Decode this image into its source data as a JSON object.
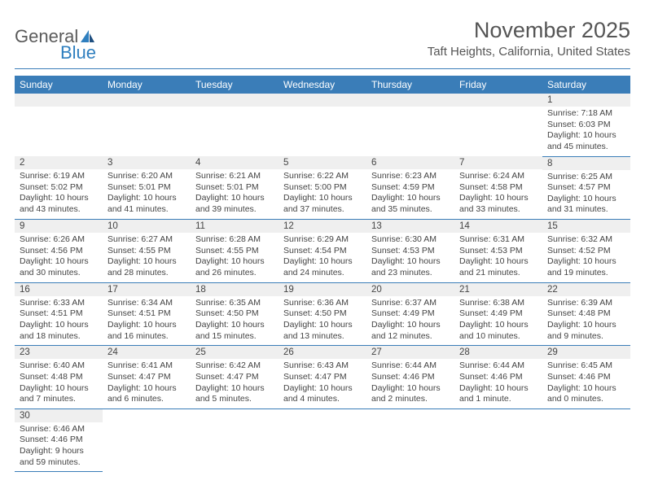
{
  "logo": {
    "word1": "General",
    "word2": "Blue"
  },
  "title": "November 2025",
  "location": "Taft Heights, California, United States",
  "colors": {
    "header_bg": "#3a7db8",
    "header_text": "#ffffff",
    "rule": "#3a7db8",
    "daynum_bg": "#efefef",
    "text": "#444444",
    "logo_gray": "#5b5b5b",
    "logo_blue": "#2f7fbf",
    "page_bg": "#ffffff"
  },
  "typography": {
    "title_fontsize": 27,
    "location_fontsize": 15,
    "weekday_fontsize": 12,
    "daynum_fontsize": 11.5,
    "detail_fontsize": 10.5,
    "font_family": "Arial"
  },
  "weekdays": [
    "Sunday",
    "Monday",
    "Tuesday",
    "Wednesday",
    "Thursday",
    "Friday",
    "Saturday"
  ],
  "weeks": [
    [
      null,
      null,
      null,
      null,
      null,
      null,
      {
        "n": "1",
        "sr": "Sunrise: 7:18 AM",
        "ss": "Sunset: 6:03 PM",
        "d1": "Daylight: 10 hours",
        "d2": "and 45 minutes."
      }
    ],
    [
      {
        "n": "2",
        "sr": "Sunrise: 6:19 AM",
        "ss": "Sunset: 5:02 PM",
        "d1": "Daylight: 10 hours",
        "d2": "and 43 minutes."
      },
      {
        "n": "3",
        "sr": "Sunrise: 6:20 AM",
        "ss": "Sunset: 5:01 PM",
        "d1": "Daylight: 10 hours",
        "d2": "and 41 minutes."
      },
      {
        "n": "4",
        "sr": "Sunrise: 6:21 AM",
        "ss": "Sunset: 5:01 PM",
        "d1": "Daylight: 10 hours",
        "d2": "and 39 minutes."
      },
      {
        "n": "5",
        "sr": "Sunrise: 6:22 AM",
        "ss": "Sunset: 5:00 PM",
        "d1": "Daylight: 10 hours",
        "d2": "and 37 minutes."
      },
      {
        "n": "6",
        "sr": "Sunrise: 6:23 AM",
        "ss": "Sunset: 4:59 PM",
        "d1": "Daylight: 10 hours",
        "d2": "and 35 minutes."
      },
      {
        "n": "7",
        "sr": "Sunrise: 6:24 AM",
        "ss": "Sunset: 4:58 PM",
        "d1": "Daylight: 10 hours",
        "d2": "and 33 minutes."
      },
      {
        "n": "8",
        "sr": "Sunrise: 6:25 AM",
        "ss": "Sunset: 4:57 PM",
        "d1": "Daylight: 10 hours",
        "d2": "and 31 minutes."
      }
    ],
    [
      {
        "n": "9",
        "sr": "Sunrise: 6:26 AM",
        "ss": "Sunset: 4:56 PM",
        "d1": "Daylight: 10 hours",
        "d2": "and 30 minutes."
      },
      {
        "n": "10",
        "sr": "Sunrise: 6:27 AM",
        "ss": "Sunset: 4:55 PM",
        "d1": "Daylight: 10 hours",
        "d2": "and 28 minutes."
      },
      {
        "n": "11",
        "sr": "Sunrise: 6:28 AM",
        "ss": "Sunset: 4:55 PM",
        "d1": "Daylight: 10 hours",
        "d2": "and 26 minutes."
      },
      {
        "n": "12",
        "sr": "Sunrise: 6:29 AM",
        "ss": "Sunset: 4:54 PM",
        "d1": "Daylight: 10 hours",
        "d2": "and 24 minutes."
      },
      {
        "n": "13",
        "sr": "Sunrise: 6:30 AM",
        "ss": "Sunset: 4:53 PM",
        "d1": "Daylight: 10 hours",
        "d2": "and 23 minutes."
      },
      {
        "n": "14",
        "sr": "Sunrise: 6:31 AM",
        "ss": "Sunset: 4:53 PM",
        "d1": "Daylight: 10 hours",
        "d2": "and 21 minutes."
      },
      {
        "n": "15",
        "sr": "Sunrise: 6:32 AM",
        "ss": "Sunset: 4:52 PM",
        "d1": "Daylight: 10 hours",
        "d2": "and 19 minutes."
      }
    ],
    [
      {
        "n": "16",
        "sr": "Sunrise: 6:33 AM",
        "ss": "Sunset: 4:51 PM",
        "d1": "Daylight: 10 hours",
        "d2": "and 18 minutes."
      },
      {
        "n": "17",
        "sr": "Sunrise: 6:34 AM",
        "ss": "Sunset: 4:51 PM",
        "d1": "Daylight: 10 hours",
        "d2": "and 16 minutes."
      },
      {
        "n": "18",
        "sr": "Sunrise: 6:35 AM",
        "ss": "Sunset: 4:50 PM",
        "d1": "Daylight: 10 hours",
        "d2": "and 15 minutes."
      },
      {
        "n": "19",
        "sr": "Sunrise: 6:36 AM",
        "ss": "Sunset: 4:50 PM",
        "d1": "Daylight: 10 hours",
        "d2": "and 13 minutes."
      },
      {
        "n": "20",
        "sr": "Sunrise: 6:37 AM",
        "ss": "Sunset: 4:49 PM",
        "d1": "Daylight: 10 hours",
        "d2": "and 12 minutes."
      },
      {
        "n": "21",
        "sr": "Sunrise: 6:38 AM",
        "ss": "Sunset: 4:49 PM",
        "d1": "Daylight: 10 hours",
        "d2": "and 10 minutes."
      },
      {
        "n": "22",
        "sr": "Sunrise: 6:39 AM",
        "ss": "Sunset: 4:48 PM",
        "d1": "Daylight: 10 hours",
        "d2": "and 9 minutes."
      }
    ],
    [
      {
        "n": "23",
        "sr": "Sunrise: 6:40 AM",
        "ss": "Sunset: 4:48 PM",
        "d1": "Daylight: 10 hours",
        "d2": "and 7 minutes."
      },
      {
        "n": "24",
        "sr": "Sunrise: 6:41 AM",
        "ss": "Sunset: 4:47 PM",
        "d1": "Daylight: 10 hours",
        "d2": "and 6 minutes."
      },
      {
        "n": "25",
        "sr": "Sunrise: 6:42 AM",
        "ss": "Sunset: 4:47 PM",
        "d1": "Daylight: 10 hours",
        "d2": "and 5 minutes."
      },
      {
        "n": "26",
        "sr": "Sunrise: 6:43 AM",
        "ss": "Sunset: 4:47 PM",
        "d1": "Daylight: 10 hours",
        "d2": "and 4 minutes."
      },
      {
        "n": "27",
        "sr": "Sunrise: 6:44 AM",
        "ss": "Sunset: 4:46 PM",
        "d1": "Daylight: 10 hours",
        "d2": "and 2 minutes."
      },
      {
        "n": "28",
        "sr": "Sunrise: 6:44 AM",
        "ss": "Sunset: 4:46 PM",
        "d1": "Daylight: 10 hours",
        "d2": "and 1 minute."
      },
      {
        "n": "29",
        "sr": "Sunrise: 6:45 AM",
        "ss": "Sunset: 4:46 PM",
        "d1": "Daylight: 10 hours",
        "d2": "and 0 minutes."
      }
    ],
    [
      {
        "n": "30",
        "sr": "Sunrise: 6:46 AM",
        "ss": "Sunset: 4:46 PM",
        "d1": "Daylight: 9 hours",
        "d2": "and 59 minutes."
      },
      null,
      null,
      null,
      null,
      null,
      null
    ]
  ]
}
